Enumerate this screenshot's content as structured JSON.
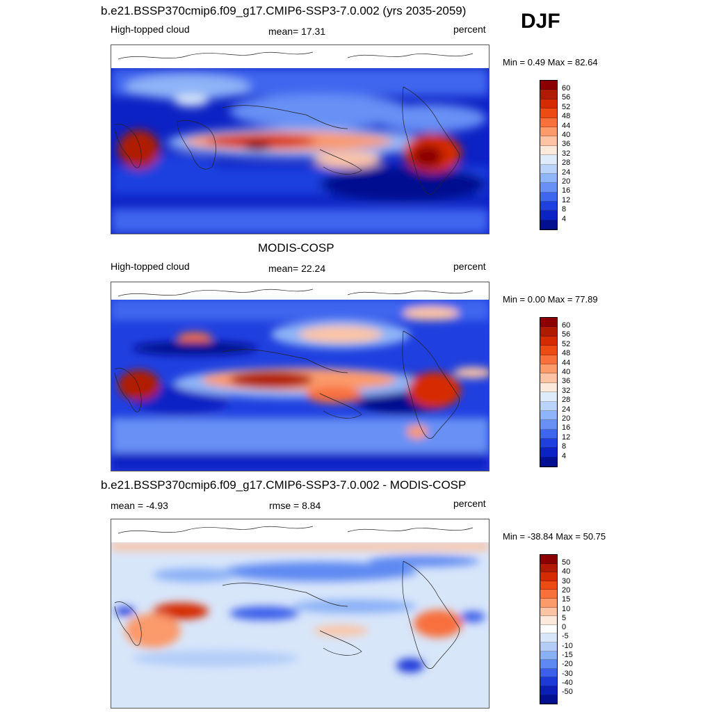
{
  "season": "DJF",
  "panels": [
    {
      "title": "b.e21.BSSP370cmip6.f09_g17.CMIP6-SSP3-7.0.002 (yrs 2035-2059)",
      "left_label": "High-topped cloud",
      "center_label": "mean=  17.31",
      "right_label": "percent",
      "minmax": "Min =   0.49 Max =  82.64",
      "colorbar": {
        "colors": [
          "#8b0000",
          "#b01a00",
          "#d62a05",
          "#ee4a16",
          "#f8703c",
          "#fb9a6a",
          "#fcc4a4",
          "#fde8dc",
          "#deebfa",
          "#b9d3fa",
          "#8fb4f7",
          "#6890f5",
          "#3f66ef",
          "#1f40df",
          "#0c22c4",
          "#03108f"
        ],
        "ticks": [
          "60",
          "56",
          "52",
          "48",
          "44",
          "40",
          "36",
          "32",
          "28",
          "24",
          "20",
          "16",
          "12",
          "8",
          "4"
        ]
      }
    },
    {
      "title": "MODIS-COSP",
      "left_label": "High-topped cloud",
      "center_label": "mean=  22.24",
      "right_label": "percent",
      "minmax": "Min =   0.00 Max =  77.89",
      "colorbar": {
        "colors": [
          "#8b0000",
          "#b01a00",
          "#d62a05",
          "#ee4a16",
          "#f8703c",
          "#fb9a6a",
          "#fcc4a4",
          "#fde8dc",
          "#deebfa",
          "#b9d3fa",
          "#8fb4f7",
          "#6890f5",
          "#3f66ef",
          "#1f40df",
          "#0c22c4",
          "#03108f"
        ],
        "ticks": [
          "60",
          "56",
          "52",
          "48",
          "44",
          "40",
          "36",
          "32",
          "28",
          "24",
          "20",
          "16",
          "12",
          "8",
          "4"
        ]
      }
    },
    {
      "title": "b.e21.BSSP370cmip6.f09_g17.CMIP6-SSP3-7.0.002 - MODIS-COSP",
      "left_label": "mean =  -4.93",
      "center_label": "rmse =   8.84",
      "right_label": "percent",
      "minmax": "Min = -38.84 Max =  50.75",
      "colorbar": {
        "colors": [
          "#8b0000",
          "#b01a00",
          "#d62a05",
          "#ee4a16",
          "#f8703c",
          "#fb9a6a",
          "#fcc4a4",
          "#fde8dc",
          "#ffffff",
          "#d8e6fa",
          "#b3cdf8",
          "#8ab0f6",
          "#5f89f2",
          "#3b5fea",
          "#1d39d8",
          "#0b1fb8",
          "#03108f"
        ],
        "ticks": [
          "50",
          "40",
          "30",
          "20",
          "15",
          "10",
          "5",
          "0",
          "-5",
          "-10",
          "-15",
          "-20",
          "-30",
          "-40",
          "-50"
        ]
      }
    }
  ]
}
